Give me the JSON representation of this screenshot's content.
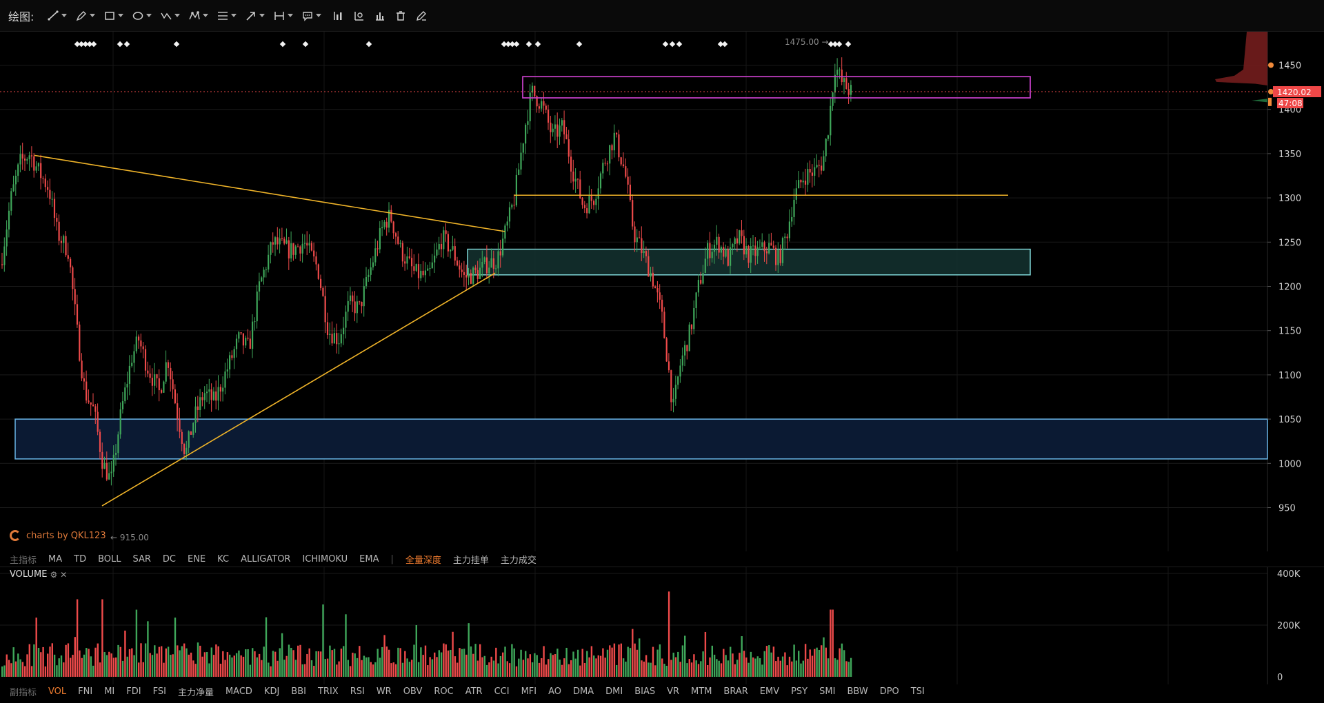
{
  "toolbar": {
    "label": "绘图:",
    "tools": [
      {
        "icon": "trend-line-icon",
        "dropdown": true
      },
      {
        "icon": "pen-tool-icon",
        "dropdown": true
      },
      {
        "icon": "rectangle-icon",
        "dropdown": true
      },
      {
        "icon": "ellipse-icon",
        "dropdown": true
      },
      {
        "icon": "zigzag-pattern-icon",
        "dropdown": true
      },
      {
        "icon": "pattern-points-icon",
        "dropdown": true
      },
      {
        "icon": "fibonacci-icon",
        "dropdown": true
      },
      {
        "icon": "arrow-icon",
        "dropdown": true
      },
      {
        "icon": "measure-icon",
        "dropdown": true
      },
      {
        "icon": "comment-icon",
        "dropdown": true
      },
      {
        "icon": "bar-chart-icon",
        "dropdown": false
      },
      {
        "icon": "chart-settings-icon",
        "dropdown": false
      },
      {
        "icon": "indicator-icon",
        "dropdown": false
      },
      {
        "icon": "trash-icon",
        "dropdown": false
      },
      {
        "icon": "edit-pencil-icon",
        "dropdown": false
      }
    ]
  },
  "price_axis": {
    "ticks": [
      "1450",
      "1400",
      "1350",
      "1300",
      "1250",
      "1200",
      "1150",
      "1100",
      "1050",
      "1000",
      "950"
    ],
    "current_price": "1420.02",
    "countdown": "47:08"
  },
  "annotations": {
    "high_label": "1475.00 →",
    "low_label": "← 915.00",
    "watermark": "charts by QKL123"
  },
  "main_indicators": {
    "title": "主指标",
    "items": [
      "MA",
      "TD",
      "BOLL",
      "SAR",
      "DC",
      "ENE",
      "KC",
      "ALLIGATOR",
      "ICHIMOKU",
      "EMA"
    ],
    "separator": "|",
    "extra": [
      "全量深度",
      "主力挂单",
      "主力成交"
    ],
    "active": "全量深度"
  },
  "volume": {
    "title": "VOLUME",
    "ticks": [
      "400K",
      "200K",
      "0"
    ]
  },
  "sub_indicators": {
    "title": "副指标",
    "items": [
      "VOL",
      "FNI",
      "MI",
      "FDI",
      "FSI",
      "主力净量",
      "MACD",
      "KDJ",
      "BBI",
      "TRIX",
      "RSI",
      "WR",
      "OBV",
      "ROC",
      "ATR",
      "CCI",
      "MFI",
      "AO",
      "DMA",
      "DMI",
      "BIAS",
      "VR",
      "MTM",
      "BRAR",
      "EMV",
      "PSY",
      "SMI",
      "BBW",
      "DPO",
      "TSI"
    ],
    "active": "VOL"
  },
  "colors": {
    "up": "#3fa75a",
    "down": "#ee4a4a",
    "trendline": "#f0b429",
    "zone_purple": "#c13ec4",
    "zone_teal": "#7fd6d6",
    "zone_blue": "#6ab6e8",
    "price_tag": "#ef4848"
  }
}
